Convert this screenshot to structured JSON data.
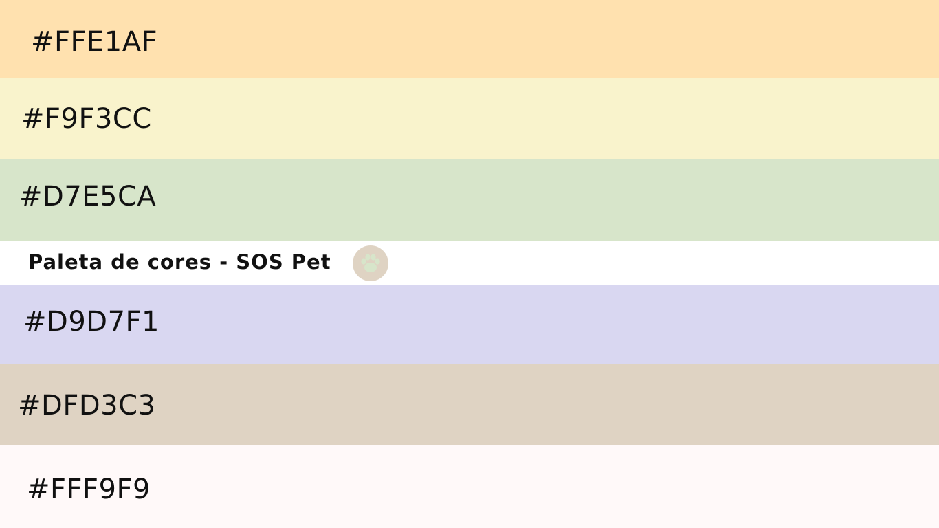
{
  "title": "Paleta de cores - SOS Pet",
  "paw_icon": {
    "name": "paw-icon",
    "circle_color": "#DFD3C3",
    "paw_color": "#D7E5CA"
  },
  "swatches": [
    {
      "label": "#FFE1AF",
      "color": "#FFE1AF"
    },
    {
      "label": "#F9F3CC",
      "color": "#F9F3CC"
    },
    {
      "label": "#D7E5CA",
      "color": "#D7E5CA"
    },
    {
      "label": "#D9D7F1",
      "color": "#D9D7F1"
    },
    {
      "label": "#DFD3C3",
      "color": "#DFD3C3"
    },
    {
      "label": "#FFF9F9",
      "color": "#FFF9F9"
    }
  ]
}
